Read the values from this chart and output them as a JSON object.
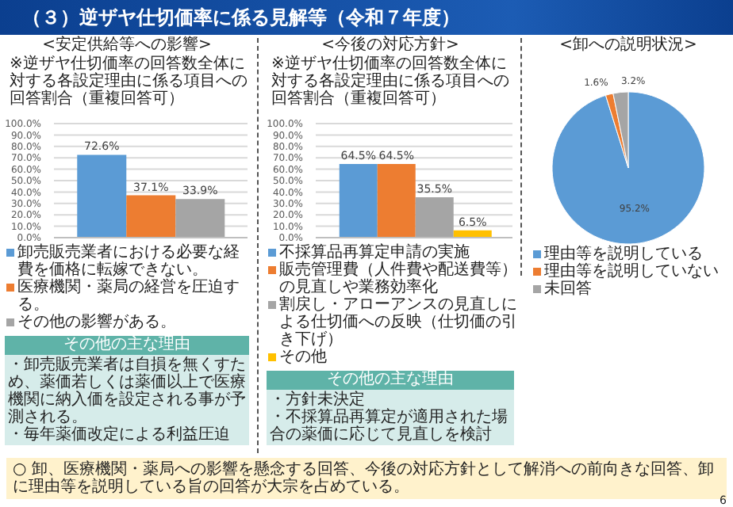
{
  "chart_data": [
    {
      "type": "bar",
      "title": "<安定供給等への影響>",
      "subtitle": "（３）逆ザヤ仕切価率に係る見解等（令和７年度）",
      "categories": [
        null
      ],
      "series": [
        {
          "name": "卸売販売業者における必要な経費を価格に転嫁できない。",
          "color": "#5b9bd5",
          "values": [
            72.6
          ],
          "value_labels": [
            "72.6%"
          ]
        },
        {
          "name": "医療機関・薬局の経営を圧迫する。",
          "color": "#ed7d31",
          "values": [
            37.1
          ],
          "value_labels": [
            "37.1%"
          ]
        },
        {
          "name": "その他の影響がある。",
          "color": "#a5a5a5",
          "values": [
            33.9
          ],
          "value_labels": [
            "33.9%"
          ]
        }
      ],
      "ylim": [
        0,
        100
      ],
      "yticks": [
        {
          "value": 0,
          "label": "0.0%"
        },
        {
          "value": 10,
          "label": "10.0%"
        },
        {
          "value": 20,
          "label": "20.0%"
        },
        {
          "value": 30,
          "label": "30.0%"
        },
        {
          "value": 40,
          "label": "40.0%"
        },
        {
          "value": 50,
          "label": "50.0%"
        },
        {
          "value": 60,
          "label": "60.0%"
        },
        {
          "value": 70,
          "label": "70.0%"
        },
        {
          "value": 80,
          "label": "80.0%"
        },
        {
          "value": 90,
          "label": "90.0%"
        },
        {
          "value": 100,
          "label": "100.0%"
        }
      ],
      "grid": "y",
      "legend": "bottom",
      "annotations": [
        "※逆ザヤ仕切価率の回答数全体に対する各設定理由に係る項目への回答割合（重複回答可）",
        "その他の主な理由",
        "・卸売販売業者は自損を無くすため、薬価若しくは薬価以上で医療機関に納入価を設定される事が予測される。",
        "・毎年薬価改定による利益圧迫"
      ]
    },
    {
      "type": "bar",
      "title": "<今後の対応方針>",
      "categories": [
        null
      ],
      "series": [
        {
          "name": "不採算品再算定申請の実施",
          "color": "#5b9bd5",
          "values": [
            64.5
          ],
          "value_labels": [
            "64.5%"
          ]
        },
        {
          "name": "販売管理費（人件費や配送費等）の見直しや業務効率化",
          "color": "#ed7d31",
          "values": [
            64.5
          ],
          "value_labels": [
            "64.5%"
          ]
        },
        {
          "name": "割戻し・アローアンスの見直しによる仕切価への反映（仕切価の引き下げ）",
          "color": "#a5a5a5",
          "values": [
            35.5
          ],
          "value_labels": [
            "35.5%"
          ]
        },
        {
          "name": "その他",
          "color": "#ffc000",
          "values": [
            6.5
          ],
          "value_labels": [
            "6.5%"
          ]
        }
      ],
      "ylim": [
        0,
        100
      ],
      "yticks": [
        {
          "value": 0,
          "label": "0.0%"
        },
        {
          "value": 10,
          "label": "10.0%"
        },
        {
          "value": 20,
          "label": "20.0%"
        },
        {
          "value": 30,
          "label": "30.0%"
        },
        {
          "value": 40,
          "label": "40.0%"
        },
        {
          "value": 50,
          "label": "50.0%"
        },
        {
          "value": 60,
          "label": "60.0%"
        },
        {
          "value": 70,
          "label": "70.0%"
        },
        {
          "value": 80,
          "label": "80.0%"
        },
        {
          "value": 90,
          "label": "90.0%"
        },
        {
          "value": 100,
          "label": "100.0%"
        }
      ],
      "grid": "y",
      "legend": "bottom",
      "annotations": [
        "※逆ザヤ仕切価率の回答数全体に対する各設定理由に係る項目への回答割合（重複回答可）",
        "その他の主な理由",
        "・方針未決定",
        "・不採算品再算定が適用された場合の薬価に応じて見直しを検討"
      ]
    },
    {
      "type": "pie",
      "title": "<卸への説明状況>",
      "categories": [
        "理由等を説明している",
        "理由等を説明していない",
        "未回答"
      ],
      "values": [
        95.2,
        1.6,
        3.2
      ],
      "value_labels": [
        "95.2%",
        "1.6%",
        "3.2%"
      ],
      "colors": [
        "#5b9bd5",
        "#ed7d31",
        "#a5a5a5"
      ],
      "legend": "bottom",
      "annotations": [
        "○ 卸、医療機関・薬局への影響を懸念する回答、今後の対応方針として解消への前向きな回答、卸に理由等を説明している旨の回答が大宗を占めている。",
        "6"
      ]
    }
  ]
}
